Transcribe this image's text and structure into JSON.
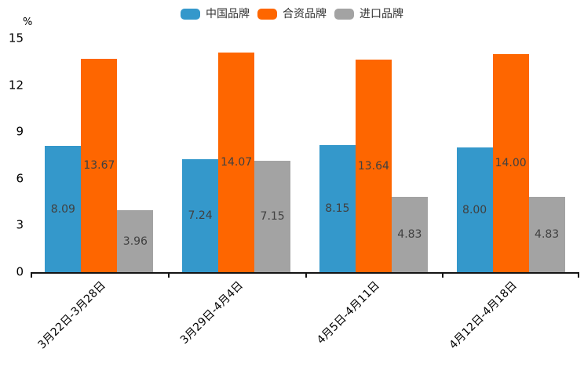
{
  "chart_data": {
    "type": "bar",
    "title": "",
    "categories": [
      "3月22日-3月28日",
      "3月29日-4月4日",
      "4月5日-4月11日",
      "4月12日-4月18日"
    ],
    "series": [
      {
        "name": "中国品牌",
        "color": "#3498cb",
        "values": [
          8.09,
          7.24,
          8.15,
          8.0
        ]
      },
      {
        "name": "合资品牌",
        "color": "#fe6600",
        "values": [
          13.67,
          14.07,
          13.64,
          14.0
        ]
      },
      {
        "name": "进口品牌",
        "color": "#a3a3a3",
        "values": [
          3.96,
          7.15,
          4.83,
          4.83
        ]
      }
    ],
    "xlabel": "",
    "ylabel": "%",
    "ylim": [
      0,
      15
    ],
    "yticks": [
      0,
      3,
      6,
      9,
      12,
      15
    ],
    "legend_position": "top-center",
    "grid": false,
    "value_labels": "inside-center",
    "value_label_decimals": 2,
    "x_tick_label_rotation_deg": 45
  },
  "colors": {
    "axis_line": "#141414",
    "tick_label_text": "#000000",
    "value_label_text": "#404040",
    "legend_text": "#333333",
    "background": "#ffffff"
  }
}
